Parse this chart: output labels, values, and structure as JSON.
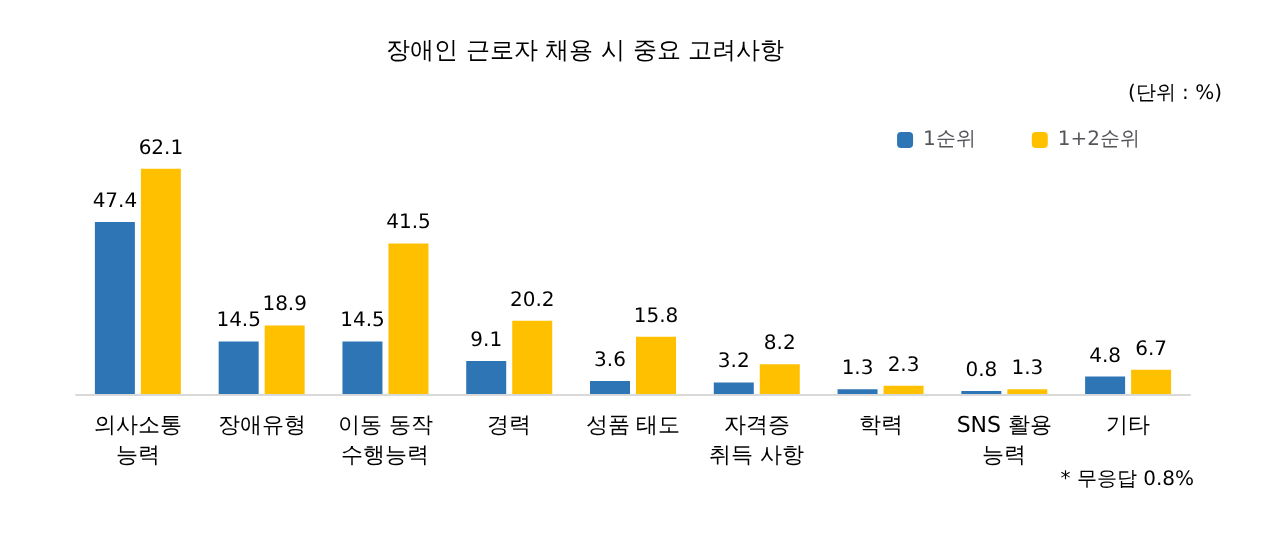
{
  "chart_data": {
    "type": "bar",
    "title": "장애인 근로자 채용 시 중요 고려사항",
    "subtitle": "(단위 : %)",
    "categories": [
      "의사소통\n능력",
      "장애유형",
      "이동 동작\n수행능력",
      "경력",
      "성품 태도",
      "자격증\n취득 사항",
      "학력",
      "SNS 활용\n능력",
      "기타"
    ],
    "series": [
      {
        "name": "1순위",
        "color": "#2e75b6",
        "values": [
          47.4,
          14.5,
          14.5,
          9.1,
          3.6,
          3.2,
          1.3,
          0.8,
          4.8
        ]
      },
      {
        "name": "1+2순위",
        "color": "#ffc000",
        "values": [
          62.1,
          18.9,
          41.5,
          20.2,
          15.8,
          8.2,
          2.3,
          1.3,
          6.7
        ]
      }
    ],
    "data_labels": true,
    "legend": "top right",
    "annotations": [
      "* 무응답 0.8%"
    ]
  }
}
